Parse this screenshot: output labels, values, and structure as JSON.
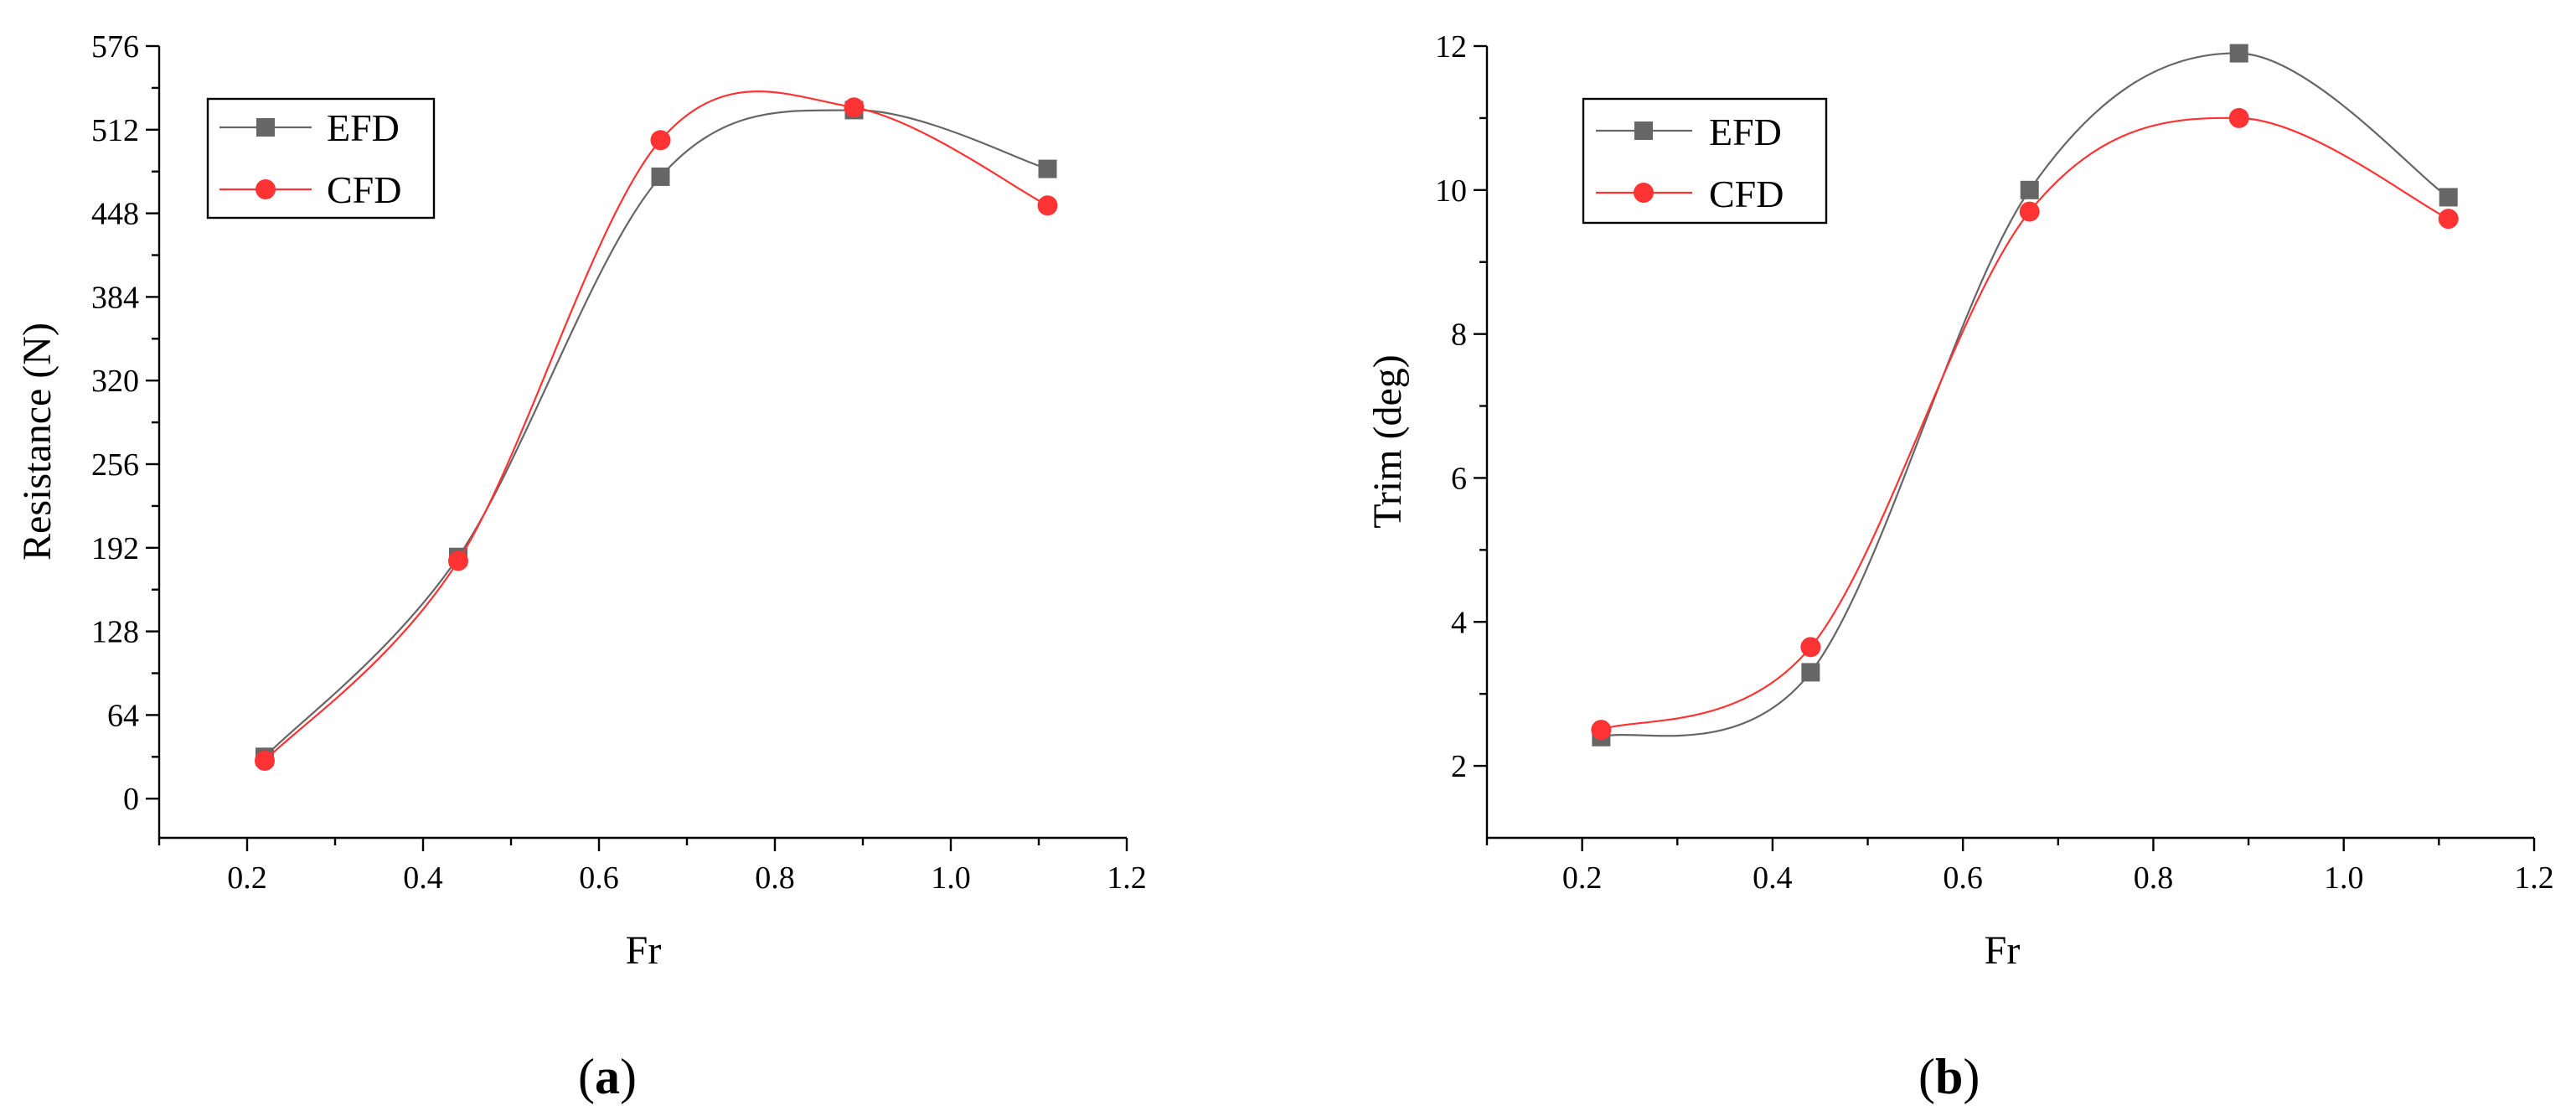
{
  "chart_data": [
    {
      "type": "line",
      "panel": "a",
      "panel_label": "(a)",
      "panel_label_letter": "a",
      "xlabel": "Fr",
      "ylabel": "Resistance (N)",
      "xlim": [
        0.1,
        1.2
      ],
      "ylim": [
        -30,
        576
      ],
      "xticks": [
        0.2,
        0.4,
        0.6,
        0.8,
        1.0,
        1.2
      ],
      "xtick_labels": [
        "0.2",
        "0.4",
        "0.6",
        "0.8",
        "1.0",
        "1.2"
      ],
      "yticks": [
        0,
        64,
        128,
        192,
        256,
        320,
        384,
        448,
        512,
        576
      ],
      "ytick_labels": [
        "0",
        "64",
        "128",
        "192",
        "256",
        "320",
        "384",
        "448",
        "512",
        "576"
      ],
      "legend_position": "top-left",
      "series": [
        {
          "name": "EFD",
          "color": "#666666",
          "marker": "square",
          "x": [
            0.22,
            0.44,
            0.67,
            0.89,
            1.11
          ],
          "values": [
            32,
            185,
            476,
            527,
            482
          ]
        },
        {
          "name": "CFD",
          "color": "#ff3333",
          "marker": "circle",
          "x": [
            0.22,
            0.44,
            0.67,
            0.89,
            1.11
          ],
          "values": [
            29,
            182,
            504,
            529,
            454
          ]
        }
      ]
    },
    {
      "type": "line",
      "panel": "b",
      "panel_label": "(b)",
      "panel_label_letter": "b",
      "xlabel": "Fr",
      "ylabel": "Trim (deg)",
      "xlim": [
        0.1,
        1.2
      ],
      "ylim": [
        1,
        12
      ],
      "xticks": [
        0.2,
        0.4,
        0.6,
        0.8,
        1.0,
        1.2
      ],
      "xtick_labels": [
        "0.2",
        "0.4",
        "0.6",
        "0.8",
        "1.0",
        "1.2"
      ],
      "yticks": [
        2,
        4,
        6,
        8,
        10,
        12
      ],
      "ytick_labels": [
        "2",
        "4",
        "6",
        "8",
        "10",
        "12"
      ],
      "legend_position": "top-left",
      "series": [
        {
          "name": "EFD",
          "color": "#666666",
          "marker": "square",
          "x": [
            0.22,
            0.44,
            0.67,
            0.89,
            1.11
          ],
          "values": [
            2.4,
            3.3,
            10.0,
            11.9,
            9.9
          ]
        },
        {
          "name": "CFD",
          "color": "#ff3333",
          "marker": "circle",
          "x": [
            0.22,
            0.44,
            0.67,
            0.89,
            1.11
          ],
          "values": [
            2.5,
            3.65,
            9.7,
            11.0,
            9.6
          ]
        }
      ]
    }
  ]
}
